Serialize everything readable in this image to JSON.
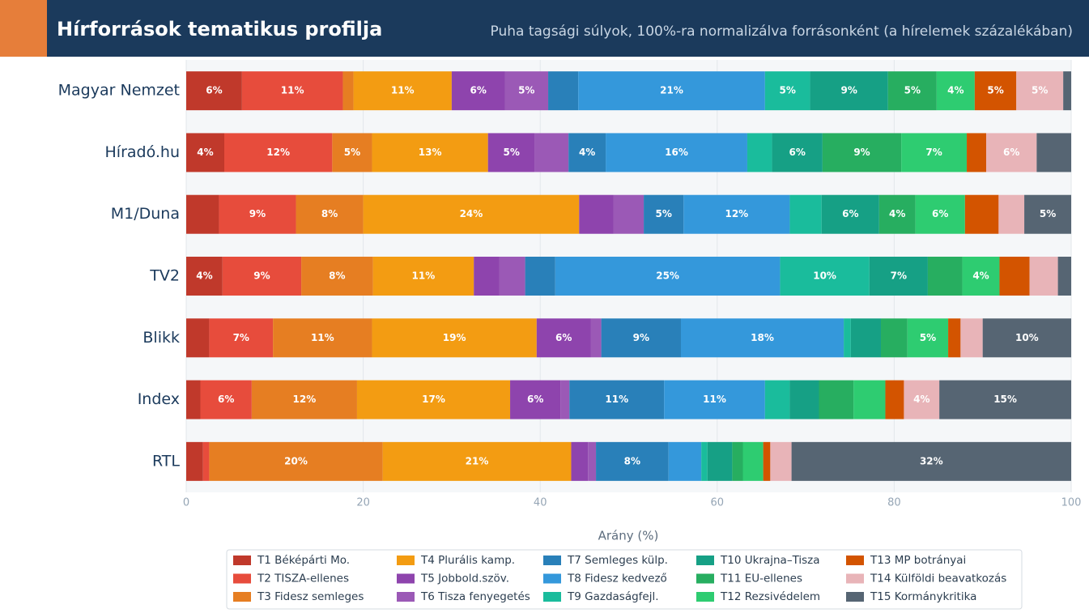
{
  "chart_data": {
    "type": "stacked_barh",
    "title": "Hírforrások tematikus profilja",
    "subtitle": "Puha tagsági súlyok, 100%-ra normalizálva forrásonként (a hírelemek százalékában)",
    "xlabel": "Arány (%)",
    "categories": [
      "Magyar Nemzet",
      "Híradó.hu",
      "M1/Duna",
      "TV2",
      "Blikk",
      "Index",
      "RTL"
    ],
    "xlim": [
      0,
      100
    ],
    "xticks": [
      0,
      20,
      40,
      60,
      80,
      100
    ],
    "grid": true,
    "legend": "bottom",
    "series": [
      {
        "name": "T1 Béképárti Mo.",
        "color": "#c0392b",
        "values": [
          6.3,
          4.3,
          3.7,
          4.1,
          2.6,
          1.6,
          1.9
        ],
        "value_labels": [
          "6%",
          "4%",
          null,
          "4%",
          null,
          null,
          null
        ]
      },
      {
        "name": "T2 TISZA-ellenes",
        "color": "#e74c3c",
        "values": [
          11.4,
          12.2,
          8.7,
          8.9,
          7.2,
          5.8,
          0.7
        ],
        "value_labels": [
          "11%",
          "12%",
          "9%",
          "9%",
          "7%",
          "6%",
          null
        ]
      },
      {
        "name": "T3 Fidesz semleges",
        "color": "#e67e22",
        "values": [
          1.2,
          4.5,
          7.6,
          8.1,
          11.2,
          11.9,
          19.6
        ],
        "value_labels": [
          null,
          "5%",
          "8%",
          "8%",
          "11%",
          "12%",
          "20%"
        ]
      },
      {
        "name": "T4 Plurális kamp.",
        "color": "#f39c12",
        "values": [
          11.1,
          13.1,
          24.4,
          11.4,
          18.6,
          17.3,
          21.3
        ],
        "value_labels": [
          "11%",
          "13%",
          "24%",
          "11%",
          "19%",
          "17%",
          "21%"
        ]
      },
      {
        "name": "T5 Jobbold.szöv.",
        "color": "#8e44ad",
        "values": [
          6.0,
          5.3,
          3.9,
          2.9,
          6.1,
          5.7,
          1.9
        ],
        "value_labels": [
          "6%",
          "5%",
          null,
          null,
          "6%",
          "6%",
          null
        ]
      },
      {
        "name": "T6 Tisza fenyegetés",
        "color": "#9b59b6",
        "values": [
          4.9,
          3.8,
          3.4,
          2.9,
          1.2,
          1.0,
          0.9
        ],
        "value_labels": [
          "5%",
          null,
          null,
          null,
          null,
          null,
          null
        ]
      },
      {
        "name": "T7 Semleges külp.",
        "color": "#2980b9",
        "values": [
          3.4,
          4.2,
          4.5,
          3.4,
          9.0,
          10.7,
          8.2
        ],
        "value_labels": [
          null,
          "4%",
          "5%",
          null,
          "9%",
          "11%",
          "8%"
        ]
      },
      {
        "name": "T8 Fidesz kedvező",
        "color": "#3498db",
        "values": [
          21.1,
          16.0,
          12.0,
          25.4,
          18.4,
          11.4,
          3.7
        ],
        "value_labels": [
          "21%",
          "16%",
          "12%",
          "25%",
          "18%",
          "11%",
          null
        ]
      },
      {
        "name": "T9 Gazdaságfejl.",
        "color": "#1abc9c",
        "values": [
          5.1,
          2.8,
          3.6,
          10.1,
          0.8,
          2.8,
          0.7
        ],
        "value_labels": [
          "5%",
          null,
          null,
          "10%",
          null,
          null,
          null
        ]
      },
      {
        "name": "T10 Ukrajna–Tisza",
        "color": "#16a085",
        "values": [
          8.8,
          5.7,
          6.5,
          6.6,
          3.4,
          3.3,
          2.8
        ],
        "value_labels": [
          "9%",
          "6%",
          "6%",
          "7%",
          null,
          null,
          null
        ]
      },
      {
        "name": "T11 EU-ellenes",
        "color": "#27ae60",
        "values": [
          5.5,
          8.9,
          4.1,
          3.9,
          3.0,
          3.9,
          1.2
        ],
        "value_labels": [
          "5%",
          "9%",
          "4%",
          null,
          null,
          null,
          null
        ]
      },
      {
        "name": "T12 Rezsivédelem",
        "color": "#2ecc71",
        "values": [
          4.3,
          7.4,
          5.6,
          4.2,
          4.6,
          3.6,
          2.3
        ],
        "value_labels": [
          "4%",
          "7%",
          "6%",
          "4%",
          "5%",
          null,
          null
        ]
      },
      {
        "name": "T13 MP botrányai",
        "color": "#d35400",
        "values": [
          4.7,
          2.2,
          3.8,
          3.4,
          1.4,
          2.1,
          0.8
        ],
        "value_labels": [
          "5%",
          null,
          null,
          null,
          null,
          null,
          null
        ]
      },
      {
        "name": "T14 Külföldi beavatkozás",
        "color": "#e8b4b8",
        "values": [
          5.3,
          5.7,
          2.9,
          3.2,
          2.5,
          4.0,
          2.4
        ],
        "value_labels": [
          "5%",
          "6%",
          null,
          null,
          null,
          "4%",
          null
        ]
      },
      {
        "name": "T15 Kormánykritika",
        "color": "#566573",
        "values": [
          0.9,
          3.9,
          5.3,
          1.5,
          10.0,
          14.9,
          31.6
        ],
        "value_labels": [
          null,
          null,
          "5%",
          null,
          "10%",
          "15%",
          "32%"
        ]
      }
    ]
  }
}
